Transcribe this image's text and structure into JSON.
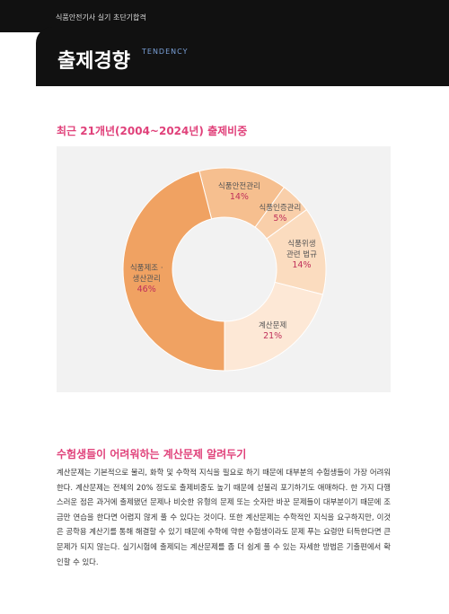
{
  "header": {
    "series_title": "식품안전기사 실기 초단기합격",
    "title": "출제경향",
    "subtitle": "TENDENCY"
  },
  "chart_data": {
    "type": "donut",
    "title": "최근 21개년(2004~2024년) 출제비중",
    "categories": [
      "식품안전관리",
      "식품인증관리",
      "식품위생\n관련 법규",
      "계산문제",
      "식품제조 ·\n생산관리"
    ],
    "values": [
      14,
      5,
      14,
      21,
      46
    ],
    "value_labels": [
      "14%",
      "5%",
      "14%",
      "21%",
      "46%"
    ],
    "colors": [
      "#f6bf8f",
      "#f9cfaa",
      "#fbdcbf",
      "#fde8d6",
      "#f0a262"
    ]
  },
  "section": {
    "title": "수험생들이 어려워하는 계산문제 알려두기",
    "body": "계산문제는 기본적으로 물리, 화학 및 수학적 지식을 필요로 하기 때문에 대부분의 수험생들이 가장 어려워한다. 계산문제는 전체의 20% 정도로 출제비중도 높기 때문에 섣불리 포기하기도 애매하다. 한 가지 다행스러운 점은 과거에 출제됐던 문제나 비슷한 유형의 문제 또는 숫자만 바꾼 문제들이 대부분이기 때문에 조금만 연습을 한다면 어렵지 않게 풀 수 있다는 것이다. 또한 계산문제는 수학적인 지식을 요구하지만, 이것은 공학용 계산기를 통해 해결할 수 있기 때문에 수학에 약한 수험생이라도 문제 푸는 요령만 터득한다면 큰 문제가 되지 않는다. 실기시험에 출제되는 계산문제를 좀 더 쉽게 풀 수 있는 자세한 방법은 기출편에서 확인할 수 있다."
  }
}
